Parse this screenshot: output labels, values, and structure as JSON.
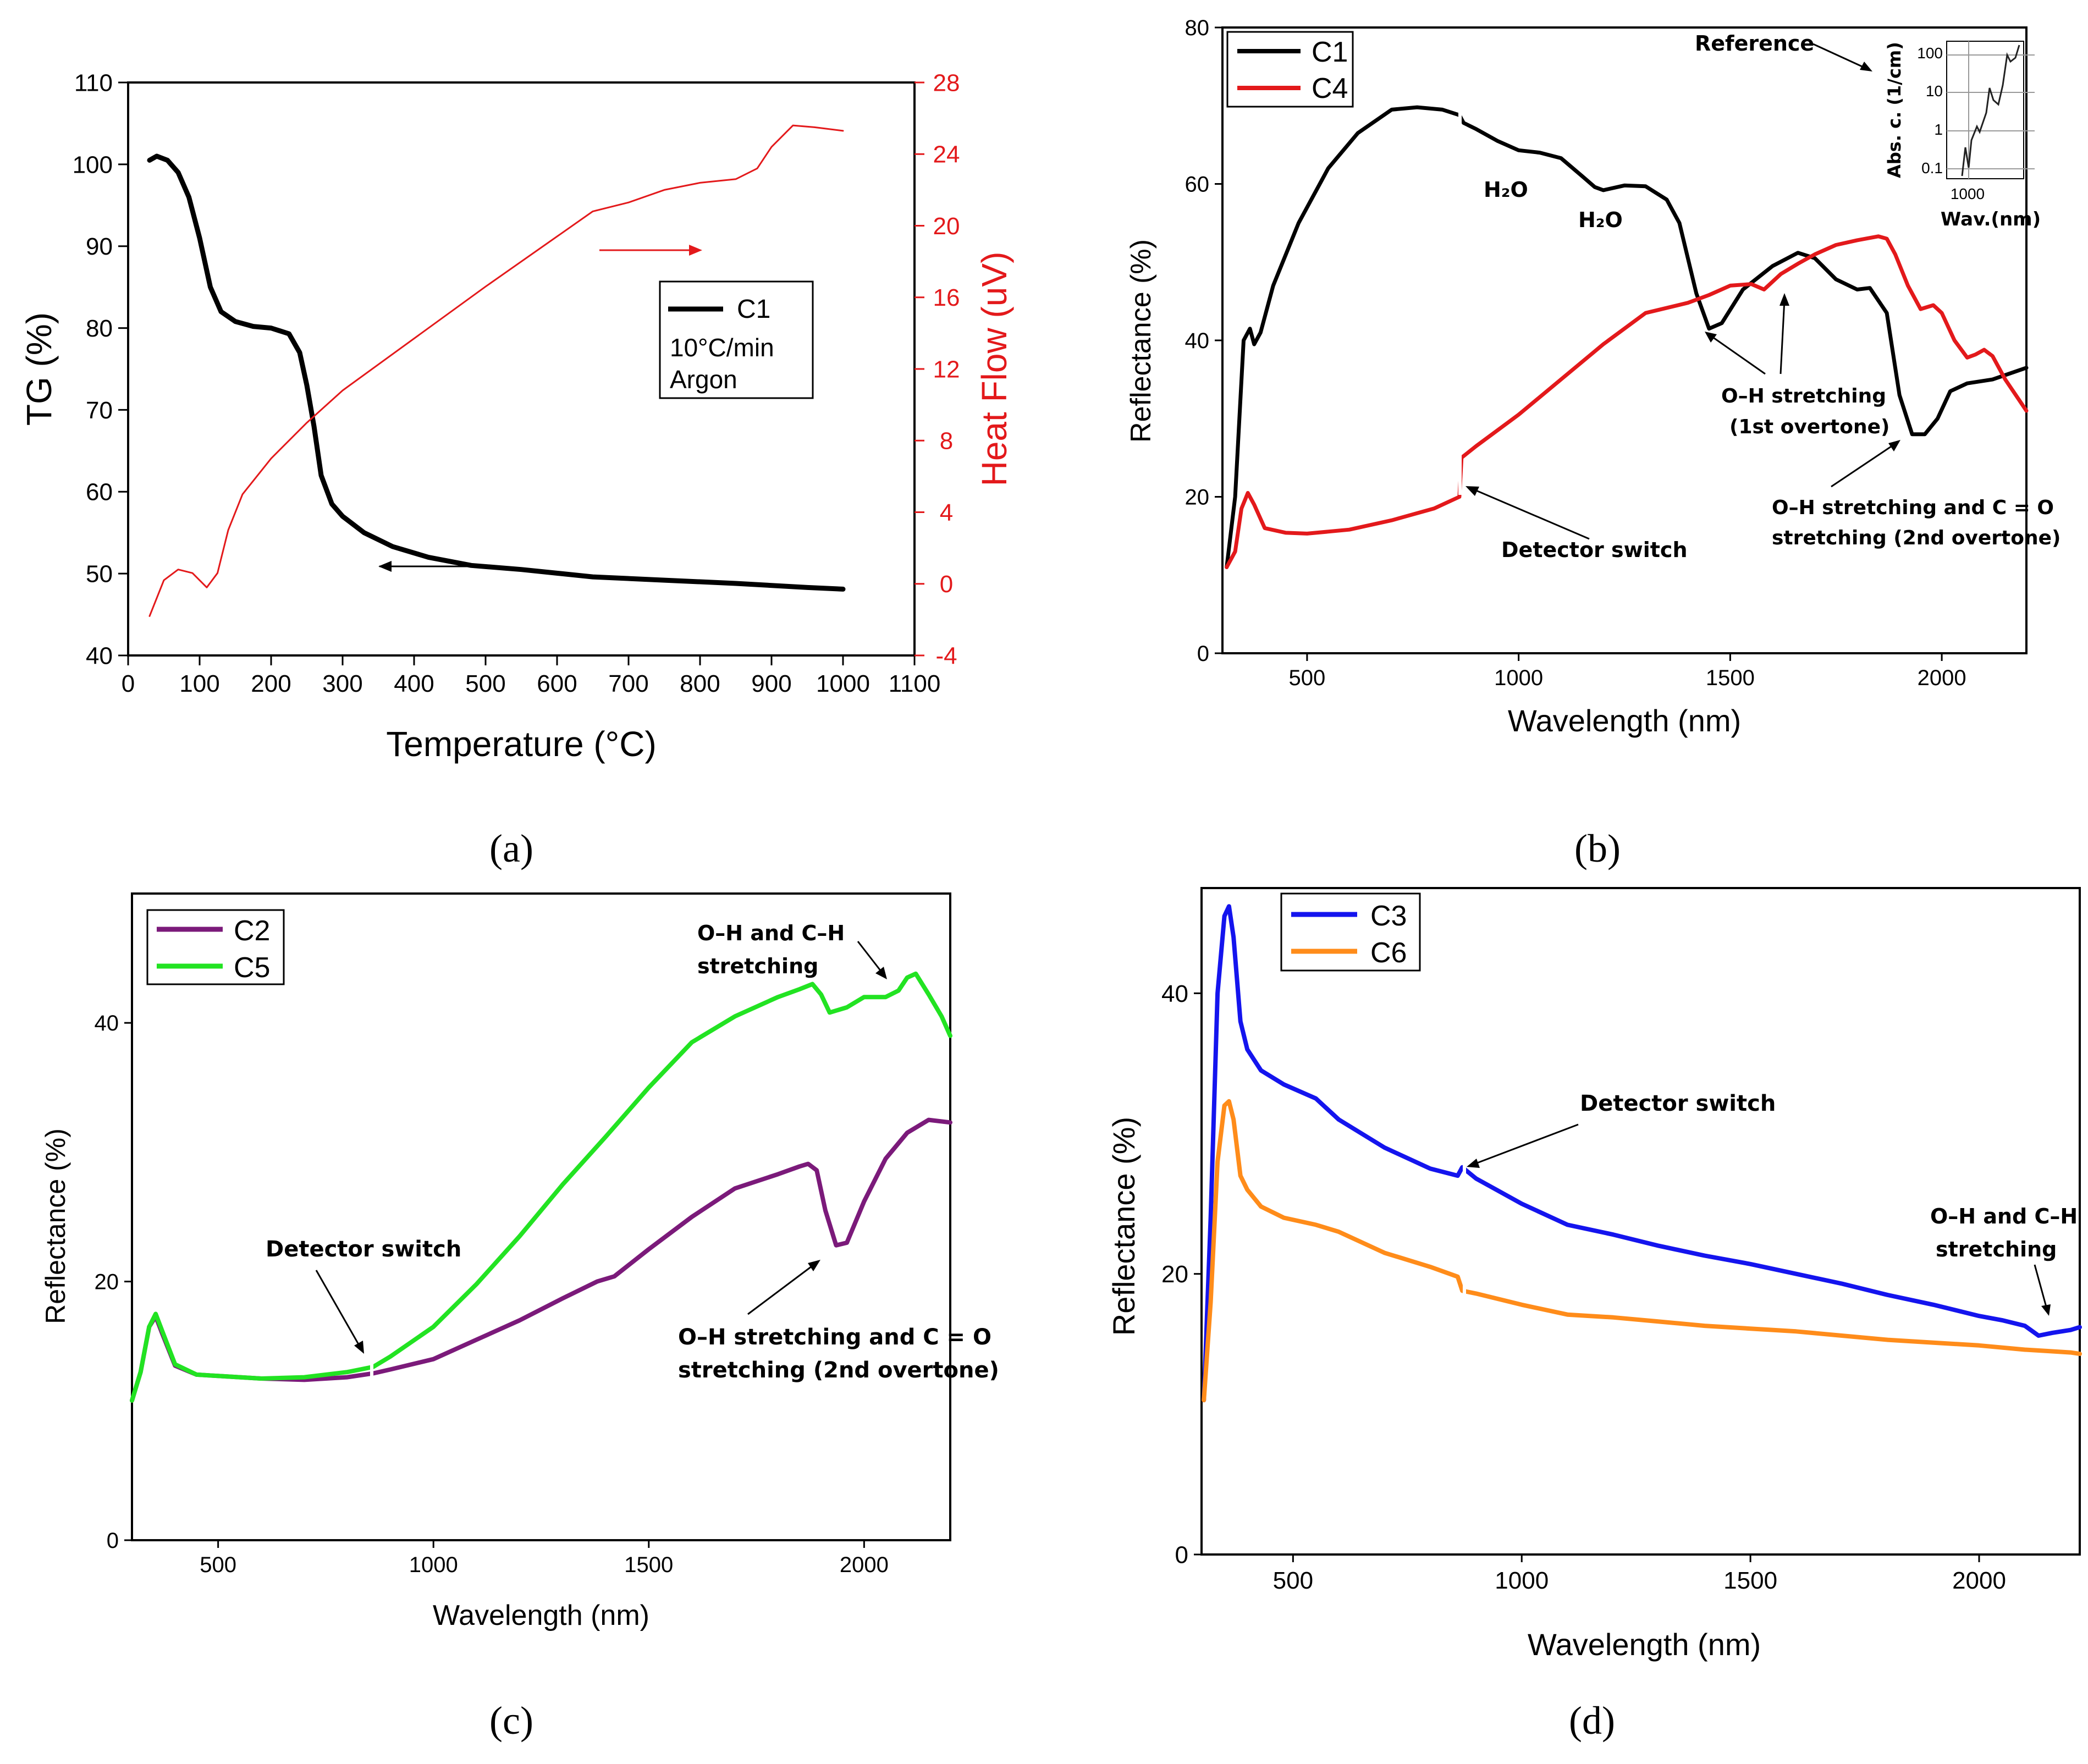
{
  "chart_data": [
    {
      "panel": "(a)",
      "type": "line",
      "xlabel": "Temperature (°C)",
      "ylabel": "TG (%)",
      "y2label": "Heat Flow (uV)",
      "xlim": [
        0,
        1100
      ],
      "ylim": [
        40,
        110
      ],
      "y2lim": [
        -4,
        28
      ],
      "xticks": [
        0,
        100,
        200,
        300,
        400,
        500,
        600,
        700,
        800,
        900,
        1000,
        1100
      ],
      "yticks": [
        40,
        50,
        60,
        70,
        80,
        90,
        100,
        110
      ],
      "y2ticks": [
        -4,
        0,
        4,
        8,
        12,
        16,
        20,
        24,
        28
      ],
      "legend": {
        "series": "C1",
        "lines": [
          "10°C/min",
          "Argon"
        ]
      },
      "series": [
        {
          "name": "C1 (TG)",
          "color": "#000000",
          "axis": "left",
          "x": [
            30,
            40,
            55,
            70,
            85,
            100,
            115,
            130,
            150,
            175,
            200,
            225,
            240,
            250,
            260,
            270,
            285,
            300,
            330,
            370,
            420,
            480,
            550,
            650,
            750,
            850,
            950,
            1000
          ],
          "y": [
            100.5,
            101,
            100.5,
            99,
            96,
            91,
            85,
            82,
            80.8,
            80.2,
            80,
            79.3,
            77,
            73,
            68,
            62,
            58.5,
            57,
            55,
            53.3,
            52,
            51,
            50.5,
            49.6,
            49.2,
            48.8,
            48.3,
            48.1
          ]
        },
        {
          "name": "Heat Flow",
          "color": "#e3191b",
          "axis": "right",
          "x": [
            30,
            50,
            70,
            90,
            110,
            125,
            140,
            160,
            200,
            250,
            300,
            400,
            500,
            600,
            650,
            700,
            750,
            800,
            850,
            880,
            900,
            930,
            960,
            1000
          ],
          "y": [
            -1.8,
            0.2,
            0.8,
            0.6,
            -0.2,
            0.6,
            3,
            5,
            7,
            9,
            10.8,
            13.7,
            16.6,
            19.4,
            20.8,
            21.3,
            22,
            22.4,
            22.6,
            23.2,
            24.4,
            25.6,
            25.5,
            25.3
          ]
        }
      ]
    },
    {
      "panel": "(b)",
      "type": "line",
      "xlabel": "Wavelength (nm)",
      "ylabel": "Reflectance (%)",
      "xlim": [
        300,
        2200
      ],
      "ylim": [
        0,
        80
      ],
      "xticks": [
        500,
        1000,
        1500,
        2000
      ],
      "yticks": [
        0,
        20,
        40,
        60,
        80
      ],
      "legend": [
        "C1",
        "C4"
      ],
      "annotations": [
        "H₂O",
        "H₂O",
        "Detector switch",
        "O–H stretching",
        "(1st overtone)",
        "O–H stretching and C = O",
        "stretching (2nd overtone)",
        "Reference"
      ],
      "inset": {
        "ylabel": "Abs. c. (1/cm)",
        "xlabel": "Wav.(nm)",
        "yticks": [
          "100",
          "10",
          "1",
          "0.1"
        ],
        "xtick": "1000"
      },
      "series": [
        {
          "name": "C1",
          "color": "#000000",
          "x": [
            310,
            330,
            350,
            365,
            375,
            390,
            420,
            480,
            550,
            620,
            700,
            760,
            820,
            860,
            870,
            900,
            950,
            1000,
            1050,
            1100,
            1150,
            1180,
            1200,
            1250,
            1300,
            1350,
            1380,
            1420,
            1450,
            1480,
            1530,
            1600,
            1660,
            1700,
            1750,
            1800,
            1830,
            1870,
            1900,
            1930,
            1960,
            1990,
            2020,
            2060,
            2120,
            2200
          ],
          "y": [
            11,
            20,
            40,
            41.5,
            39.5,
            41,
            47,
            55,
            62,
            66.5,
            69.5,
            69.8,
            69.5,
            68.8,
            67.8,
            67,
            65.5,
            64.3,
            64,
            63.3,
            61,
            59.6,
            59.2,
            59.8,
            59.7,
            58,
            55,
            46,
            41.5,
            42.2,
            46.5,
            49.5,
            51.2,
            50.5,
            47.8,
            46.5,
            46.7,
            43.5,
            33,
            28,
            28,
            30,
            33.5,
            34.5,
            35,
            36.5
          ]
        },
        {
          "name": "C4",
          "color": "#e3191b",
          "x": [
            310,
            330,
            345,
            360,
            375,
            400,
            450,
            500,
            600,
            700,
            800,
            860,
            865,
            900,
            1000,
            1100,
            1200,
            1300,
            1400,
            1450,
            1500,
            1550,
            1580,
            1620,
            1660,
            1700,
            1750,
            1800,
            1850,
            1870,
            1890,
            1920,
            1950,
            1980,
            2000,
            2030,
            2060,
            2080,
            2100,
            2120,
            2150,
            2200
          ],
          "y": [
            11,
            13,
            18.5,
            20.5,
            19,
            16,
            15.4,
            15.3,
            15.8,
            17,
            18.5,
            20,
            25,
            26.5,
            30.5,
            35,
            39.5,
            43.5,
            44.8,
            45.8,
            47,
            47.2,
            46.5,
            48.5,
            49.8,
            51,
            52.2,
            52.8,
            53.3,
            53,
            51,
            47,
            44,
            44.5,
            43.5,
            40,
            37.8,
            38.2,
            38.8,
            38,
            35,
            31
          ]
        }
      ]
    },
    {
      "panel": "(c)",
      "type": "line",
      "xlabel": "Wavelength (nm)",
      "ylabel": "Reflectance (%)",
      "xlim": [
        300,
        2200
      ],
      "ylim": [
        0,
        50
      ],
      "xticks": [
        500,
        1000,
        1500,
        2000
      ],
      "yticks": [
        0,
        20,
        40
      ],
      "legend": [
        "C2",
        "C5"
      ],
      "annotations": [
        "O–H and C–H",
        "stretching",
        "Detector switch",
        "O–H stretching and C = O",
        "stretching (2nd overtone)"
      ],
      "series": [
        {
          "name": "C2",
          "color": "#7b1a7a",
          "x": [
            300,
            320,
            340,
            355,
            370,
            400,
            450,
            500,
            600,
            700,
            800,
            860,
            900,
            1000,
            1100,
            1200,
            1300,
            1380,
            1420,
            1500,
            1600,
            1700,
            1800,
            1850,
            1870,
            1890,
            1910,
            1935,
            1960,
            2000,
            2050,
            2100,
            2150,
            2200
          ],
          "y": [
            10.8,
            13,
            16.5,
            17.3,
            16,
            13.5,
            12.8,
            12.7,
            12.5,
            12.4,
            12.6,
            12.9,
            13.2,
            14,
            15.5,
            17,
            18.7,
            20,
            20.4,
            22.5,
            25,
            27.2,
            28.3,
            28.9,
            29.1,
            28.6,
            25.5,
            22.8,
            23,
            26.2,
            29.5,
            31.5,
            32.5,
            32.3
          ]
        },
        {
          "name": "C5",
          "color": "#22e322",
          "x": [
            300,
            320,
            340,
            355,
            370,
            400,
            450,
            500,
            600,
            700,
            800,
            860,
            900,
            1000,
            1100,
            1200,
            1300,
            1400,
            1500,
            1600,
            1700,
            1800,
            1850,
            1880,
            1900,
            1920,
            1960,
            2000,
            2050,
            2080,
            2100,
            2120,
            2150,
            2180,
            2200
          ],
          "y": [
            10.8,
            13,
            16.5,
            17.5,
            16.2,
            13.6,
            12.8,
            12.7,
            12.5,
            12.6,
            13,
            13.4,
            14.2,
            16.5,
            19.8,
            23.5,
            27.5,
            31.2,
            35,
            38.5,
            40.5,
            42,
            42.6,
            43,
            42.2,
            40.8,
            41.2,
            42,
            42,
            42.5,
            43.5,
            43.8,
            42.2,
            40.5,
            39
          ]
        }
      ]
    },
    {
      "panel": "(d)",
      "type": "line",
      "xlabel": "Wavelength (nm)",
      "ylabel": "Reflectance (%)",
      "xlim": [
        300,
        2220
      ],
      "ylim": [
        0,
        47.5
      ],
      "xticks": [
        500,
        1000,
        1500,
        2000
      ],
      "yticks": [
        0,
        20,
        40
      ],
      "legend": [
        "C3",
        "C6"
      ],
      "annotations": [
        "Detector switch",
        "O–H and C–H",
        "stretching"
      ],
      "series": [
        {
          "name": "C3",
          "color": "#1414ee",
          "x": [
            305,
            320,
            335,
            350,
            360,
            370,
            385,
            400,
            430,
            480,
            550,
            600,
            700,
            800,
            860,
            870,
            900,
            1000,
            1100,
            1200,
            1300,
            1400,
            1500,
            1600,
            1700,
            1800,
            1900,
            2000,
            2050,
            2100,
            2130,
            2160,
            2200,
            2220
          ],
          "y": [
            11,
            24,
            40,
            45.5,
            46.2,
            44,
            38,
            36,
            34.5,
            33.5,
            32.5,
            31,
            29,
            27.5,
            27,
            27.6,
            26.8,
            25,
            23.5,
            22.8,
            22,
            21.3,
            20.7,
            20,
            19.3,
            18.5,
            17.8,
            17,
            16.7,
            16.3,
            15.6,
            15.8,
            16,
            16.2
          ]
        },
        {
          "name": "C6",
          "color": "#ff8c1a",
          "x": [
            305,
            320,
            335,
            350,
            360,
            370,
            385,
            400,
            430,
            480,
            550,
            600,
            700,
            800,
            860,
            870,
            900,
            1000,
            1100,
            1200,
            1300,
            1400,
            1500,
            1600,
            1700,
            1800,
            1900,
            2000,
            2100,
            2150,
            2200,
            2220
          ],
          "y": [
            11,
            18,
            28,
            32,
            32.3,
            31,
            27,
            26,
            24.8,
            24,
            23.5,
            23,
            21.5,
            20.5,
            19.8,
            18.8,
            18.6,
            17.8,
            17.1,
            16.9,
            16.6,
            16.3,
            16.1,
            15.9,
            15.6,
            15.3,
            15.1,
            14.9,
            14.6,
            14.5,
            14.4,
            14.3
          ]
        }
      ]
    }
  ]
}
